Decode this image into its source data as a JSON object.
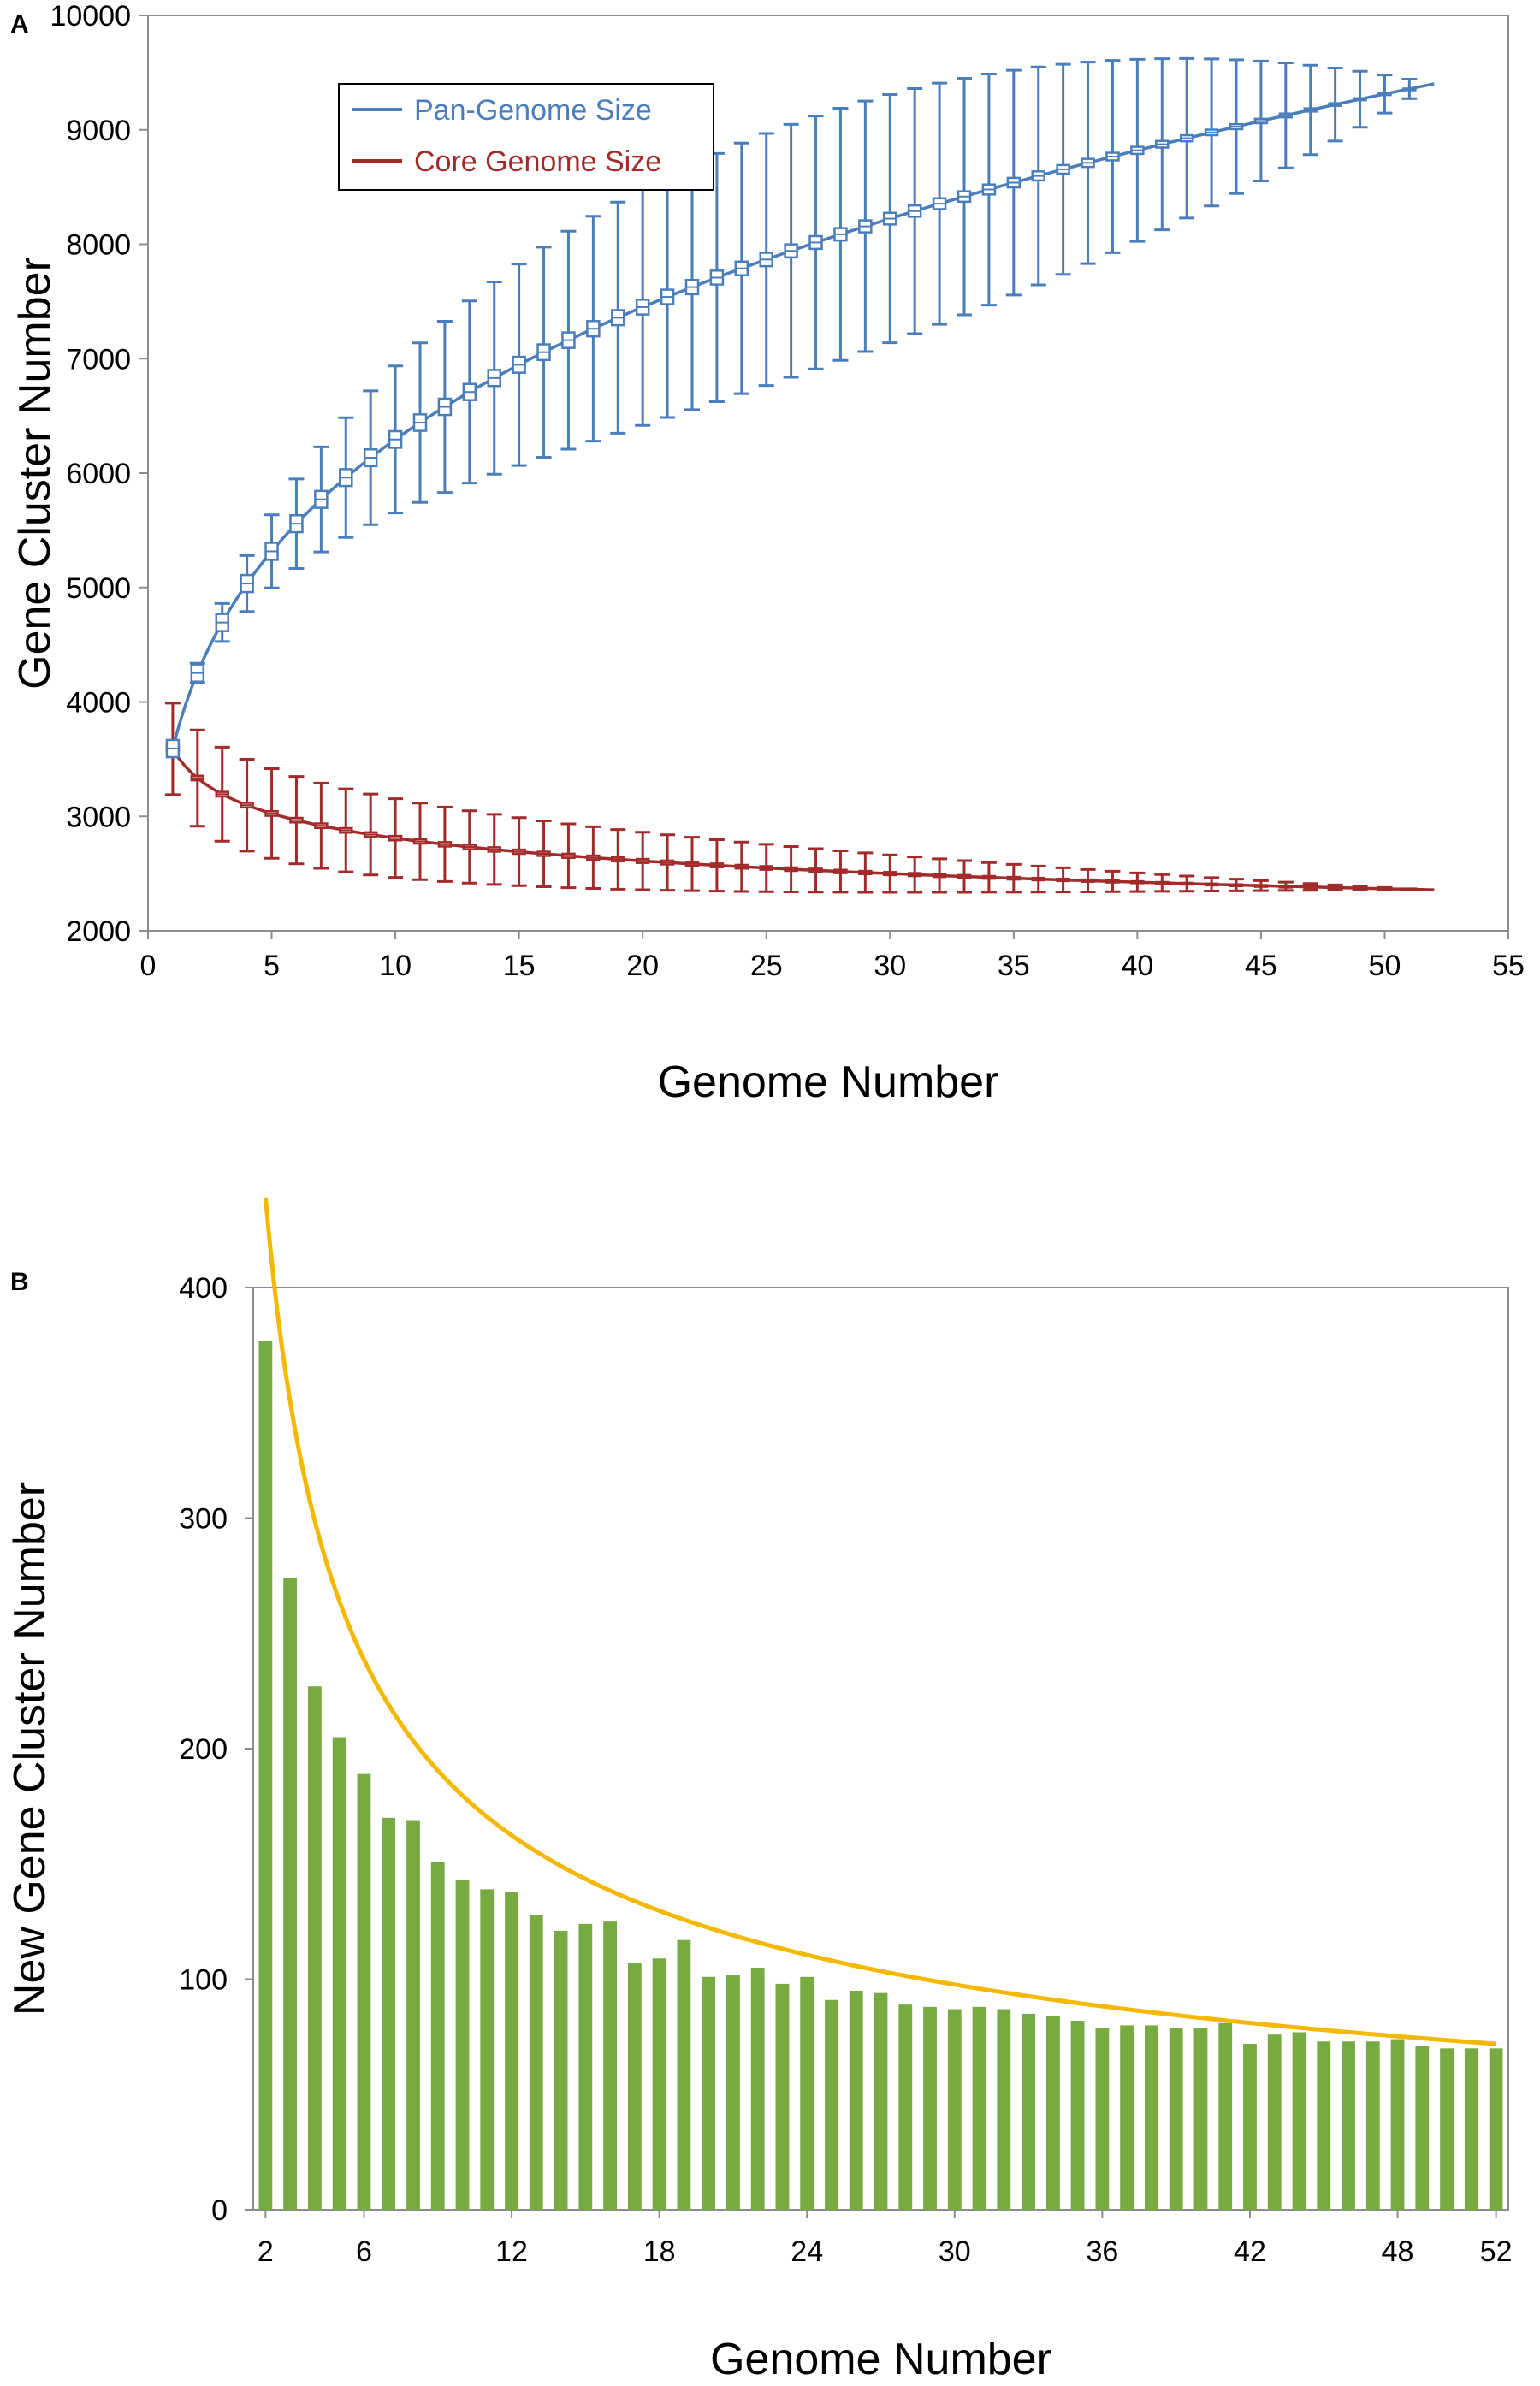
{
  "chart_data": [
    {
      "panel": "A",
      "type": "line",
      "xlabel": "Genome Number",
      "ylabel": "Gene Cluster Number",
      "xlim": [
        0,
        55
      ],
      "ylim": [
        2000,
        10000
      ],
      "x_ticks": [
        "0",
        "5",
        "10",
        "15",
        "20",
        "25",
        "30",
        "35",
        "40",
        "45",
        "50",
        "55"
      ],
      "y_ticks": [
        "2000",
        "3000",
        "4000",
        "5000",
        "6000",
        "7000",
        "8000",
        "9000",
        "10000"
      ],
      "grid": false,
      "legend": {
        "position": "top-left",
        "entries": [
          "Pan-Genome Size",
          "Core Genome Size"
        ]
      },
      "series": [
        {
          "name": "Pan-Genome Size",
          "color": "#4a7ebb",
          "fit": {
            "form": "power",
            "a": 3592.5,
            "b": 0.2435
          },
          "box_stats": {
            "x_start": 1,
            "x_end": 52,
            "median_model": "a*x^b",
            "box_halfwidth_model": "75*(1-((x-1)/51)^2)",
            "whisker_halfwidth_model": "1.7*(x-1)*(52-x)"
          }
        },
        {
          "name": "Core Genome Size",
          "color": "#a32a2a",
          "fit": {
            "form": "power",
            "a": 3590,
            "b": -0.1064
          },
          "box_stats": {
            "x_start": 1,
            "x_end": 52,
            "median_model": "a*x^b",
            "box_halfwidth_model": "20*(1-((x-1)/51)^2)",
            "whisker_halfwidth_model": "400 at x=1, 0 at x=52, decreasing"
          }
        }
      ]
    },
    {
      "panel": "B",
      "type": "bar",
      "xlabel": "Genome Number",
      "ylabel": "New Gene Cluster Number",
      "xlim": [
        1.5,
        52.5
      ],
      "ylim": [
        0,
        400
      ],
      "x_ticks": [
        "2",
        "6",
        "12",
        "18",
        "24",
        "30",
        "36",
        "42",
        "48",
        "52"
      ],
      "y_ticks": [
        "0",
        "100",
        "200",
        "300",
        "400"
      ],
      "grid": false,
      "bar_color": "#77ab41",
      "fit_color": "#f5b800",
      "fit": {
        "form": "power",
        "a": 645,
        "b": -0.555
      },
      "x": [
        2,
        3,
        4,
        5,
        6,
        7,
        8,
        9,
        10,
        11,
        12,
        13,
        14,
        15,
        16,
        17,
        18,
        19,
        20,
        21,
        22,
        23,
        24,
        25,
        26,
        27,
        28,
        29,
        30,
        31,
        32,
        33,
        34,
        35,
        36,
        37,
        38,
        39,
        40,
        41,
        42,
        43,
        44,
        45,
        46,
        47,
        48,
        49,
        50,
        51,
        52
      ],
      "values": [
        377,
        274,
        227,
        205,
        189,
        170,
        169,
        151,
        143,
        139,
        138,
        128,
        121,
        124,
        125,
        107,
        109,
        117,
        101,
        102,
        105,
        98,
        101,
        91,
        95,
        94,
        89,
        88,
        87,
        88,
        87,
        85,
        84,
        82,
        79,
        80,
        80,
        79,
        79,
        81,
        72,
        76,
        77,
        73,
        73,
        73,
        74,
        71,
        70,
        70,
        70
      ]
    }
  ]
}
